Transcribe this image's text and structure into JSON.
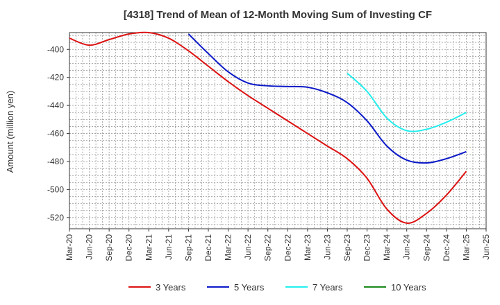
{
  "chart_data": {
    "type": "line",
    "title": "[4318]  Trend of Mean of 12-Month Moving Sum of Investing CF",
    "xlabel": "",
    "ylabel": "Amount (million yen)",
    "ylim": [
      -528,
      -388
    ],
    "yticks": [
      -400,
      -420,
      -440,
      -460,
      -480,
      -500,
      -520
    ],
    "grid": true,
    "legend_position": "bottom",
    "categories": [
      "Mar-20",
      "Jun-20",
      "Sep-20",
      "Dec-20",
      "Mar-21",
      "Jun-21",
      "Sep-21",
      "Dec-21",
      "Mar-22",
      "Jun-22",
      "Sep-22",
      "Dec-22",
      "Mar-23",
      "Jun-23",
      "Sep-23",
      "Dec-23",
      "Mar-24",
      "Jun-24",
      "Sep-24",
      "Dec-24",
      "Mar-25",
      "Jun-25"
    ],
    "series": [
      {
        "name": "3 Years",
        "color": "#dd1111",
        "values": [
          -392,
          -397,
          -393,
          -389,
          -388,
          -392,
          -401,
          -412,
          -423,
          -433,
          -442,
          -451,
          -460,
          -469,
          -478,
          -492,
          -514,
          -524,
          -517,
          -504,
          -487,
          null
        ]
      },
      {
        "name": "5 Years",
        "color": "#0a18c8",
        "values": [
          null,
          null,
          null,
          null,
          null,
          null,
          -389,
          -403,
          -416,
          -424,
          -426,
          -426.5,
          -427,
          -431,
          -438,
          -451,
          -469,
          -479,
          -481,
          -478,
          -473,
          null
        ]
      },
      {
        "name": "7 Years",
        "color": "#22eeee",
        "values": [
          null,
          null,
          null,
          null,
          null,
          null,
          null,
          null,
          null,
          null,
          null,
          null,
          null,
          null,
          -417,
          -430,
          -449,
          -458,
          -457,
          -452,
          -445,
          null
        ]
      },
      {
        "name": "10 Years",
        "color": "#1a8a1a",
        "values": [
          null,
          null,
          null,
          null,
          null,
          null,
          null,
          null,
          null,
          null,
          null,
          null,
          null,
          null,
          null,
          null,
          null,
          null,
          null,
          null,
          null,
          null
        ]
      }
    ]
  }
}
